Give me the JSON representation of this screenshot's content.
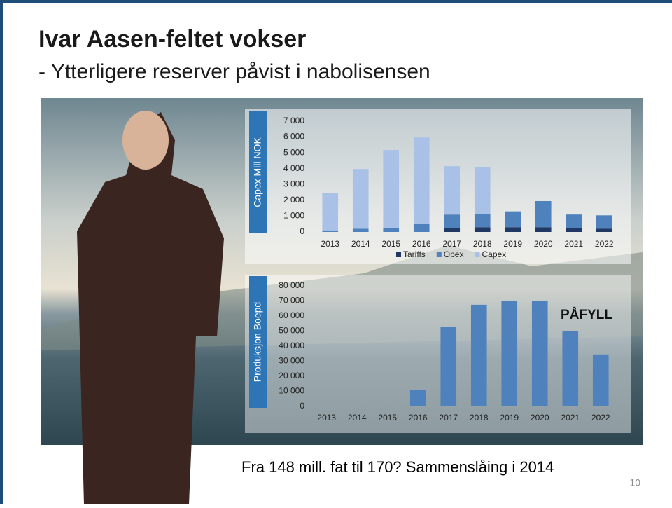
{
  "header": {
    "title": "Ivar Aasen-feltet vokser",
    "subtitle": "- Ytterligere reserver påvist i nabolisensen"
  },
  "chart_data": [
    {
      "type": "bar",
      "stacked": true,
      "y_label": "Capex Mill NOK",
      "categories": [
        "2013",
        "2014",
        "2015",
        "2016",
        "2017",
        "2018",
        "2019",
        "2020",
        "2021",
        "2022"
      ],
      "series": [
        {
          "name": "Tariffs",
          "color": "#1f3864",
          "values": [
            0,
            0,
            0,
            0,
            250,
            300,
            300,
            300,
            250,
            200
          ]
        },
        {
          "name": "Opex",
          "color": "#4f81bd",
          "values": [
            100,
            200,
            250,
            500,
            850,
            850,
            1000,
            1650,
            850,
            850
          ]
        },
        {
          "name": "Capex",
          "color": "#a9c1e6",
          "values": [
            2380,
            3780,
            4930,
            5470,
            3060,
            2970,
            0,
            0,
            0,
            0
          ]
        }
      ],
      "ylim": [
        0,
        7000
      ],
      "yticks": [
        0,
        {
          "value": 1000,
          "label": "1 000"
        },
        {
          "value": 2000,
          "label": "2 000"
        },
        {
          "value": 3000,
          "label": "3 000"
        },
        {
          "value": 4000,
          "label": "4 000"
        },
        {
          "value": 5000,
          "label": "5 000"
        },
        {
          "value": 6000,
          "label": "6 000"
        },
        {
          "value": 7000,
          "label": "7 000"
        }
      ],
      "legend": "bottom"
    },
    {
      "type": "bar",
      "y_label": "Produksjon Boepd",
      "color": "#4f81bd",
      "categories": [
        "2013",
        "2014",
        "2015",
        "2016",
        "2017",
        "2018",
        "2019",
        "2020",
        "2021",
        "2022"
      ],
      "values": [
        0,
        0,
        0,
        11000,
        53000,
        67500,
        70000,
        70000,
        50000,
        34500
      ],
      "ylim": [
        0,
        80000
      ],
      "yticks": [
        0,
        {
          "value": 10000,
          "label": "10 000"
        },
        {
          "value": 20000,
          "label": "20 000"
        },
        {
          "value": 30000,
          "label": "30 000"
        },
        {
          "value": 40000,
          "label": "40 000"
        },
        {
          "value": 50000,
          "label": "50 000"
        },
        {
          "value": 60000,
          "label": "60 000"
        },
        {
          "value": 70000,
          "label": "70 000"
        },
        {
          "value": 80000,
          "label": "80 000"
        }
      ],
      "annotation": "PÅFYLL"
    }
  ],
  "footer": "Fra 148 mill. fat til 170? Sammenslåing i 2014",
  "page_number": "10"
}
